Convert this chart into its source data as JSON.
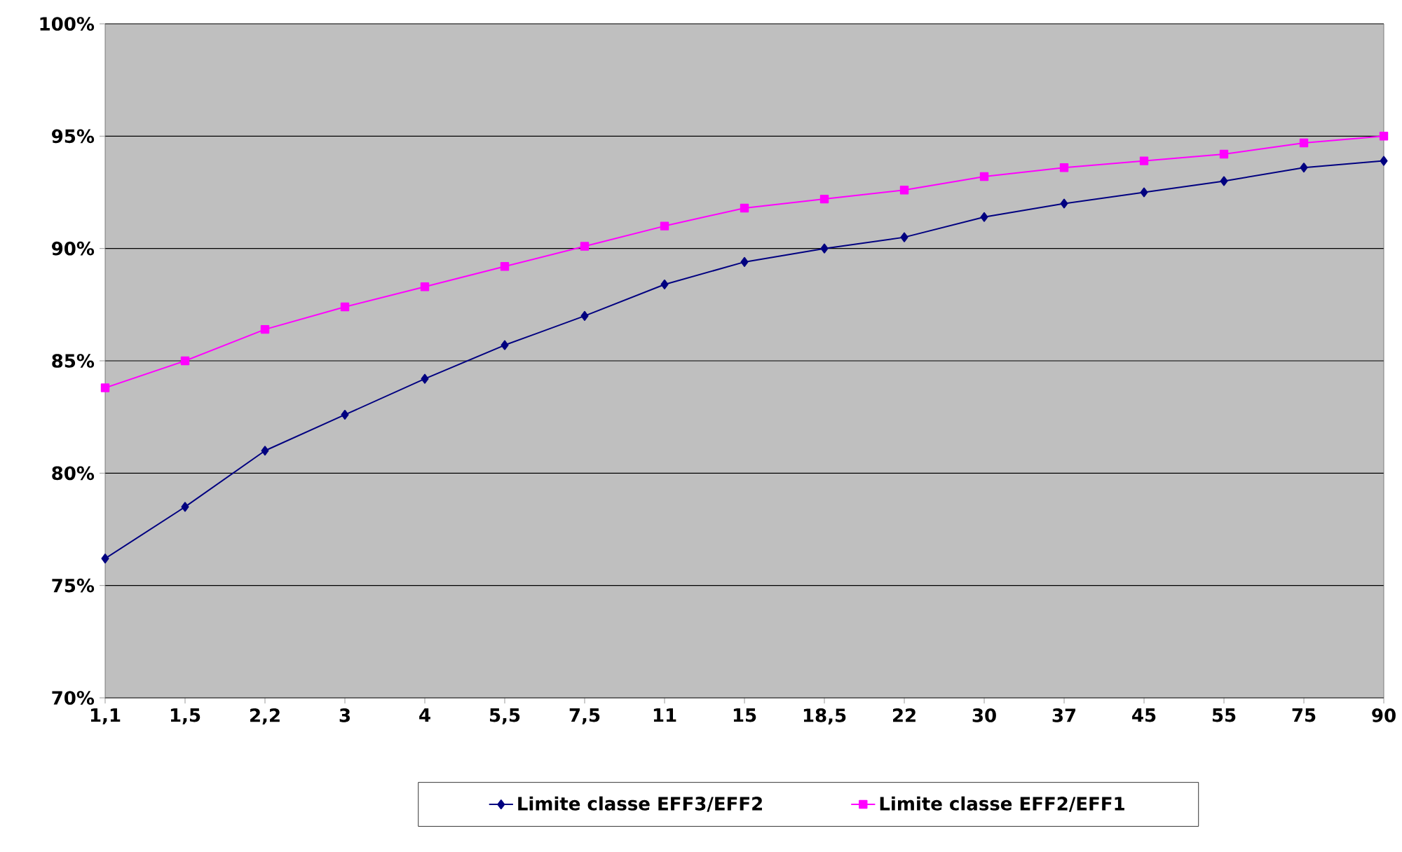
{
  "chart_data": {
    "type": "line",
    "categories": [
      "1,1",
      "1,5",
      "2,2",
      "3",
      "4",
      "5,5",
      "7,5",
      "11",
      "15",
      "18,5",
      "22",
      "30",
      "37",
      "45",
      "55",
      "75",
      "90"
    ],
    "series": [
      {
        "name": "Limite classe EFF3/EFF2",
        "color": "#000080",
        "marker": "diamond",
        "values": [
          76.2,
          78.5,
          81.0,
          82.6,
          84.2,
          85.7,
          87.0,
          88.4,
          89.4,
          90.0,
          90.5,
          91.4,
          92.0,
          92.5,
          93.0,
          93.6,
          93.9
        ]
      },
      {
        "name": "Limite classe EFF2/EFF1",
        "color": "#ff00ff",
        "marker": "square",
        "values": [
          83.8,
          85.0,
          86.4,
          87.4,
          88.3,
          89.2,
          90.1,
          91.0,
          91.8,
          92.2,
          92.6,
          93.2,
          93.6,
          93.9,
          94.2,
          94.7,
          95.0
        ]
      }
    ],
    "ylim": [
      70,
      100
    ],
    "yticks": [
      {
        "value": 70,
        "label": "70%"
      },
      {
        "value": 75,
        "label": "75%"
      },
      {
        "value": 80,
        "label": "80%"
      },
      {
        "value": 85,
        "label": "85%"
      },
      {
        "value": 90,
        "label": "90%"
      },
      {
        "value": 95,
        "label": "95%"
      },
      {
        "value": 100,
        "label": "100%"
      }
    ],
    "grid": "y",
    "legend": "bottom"
  }
}
